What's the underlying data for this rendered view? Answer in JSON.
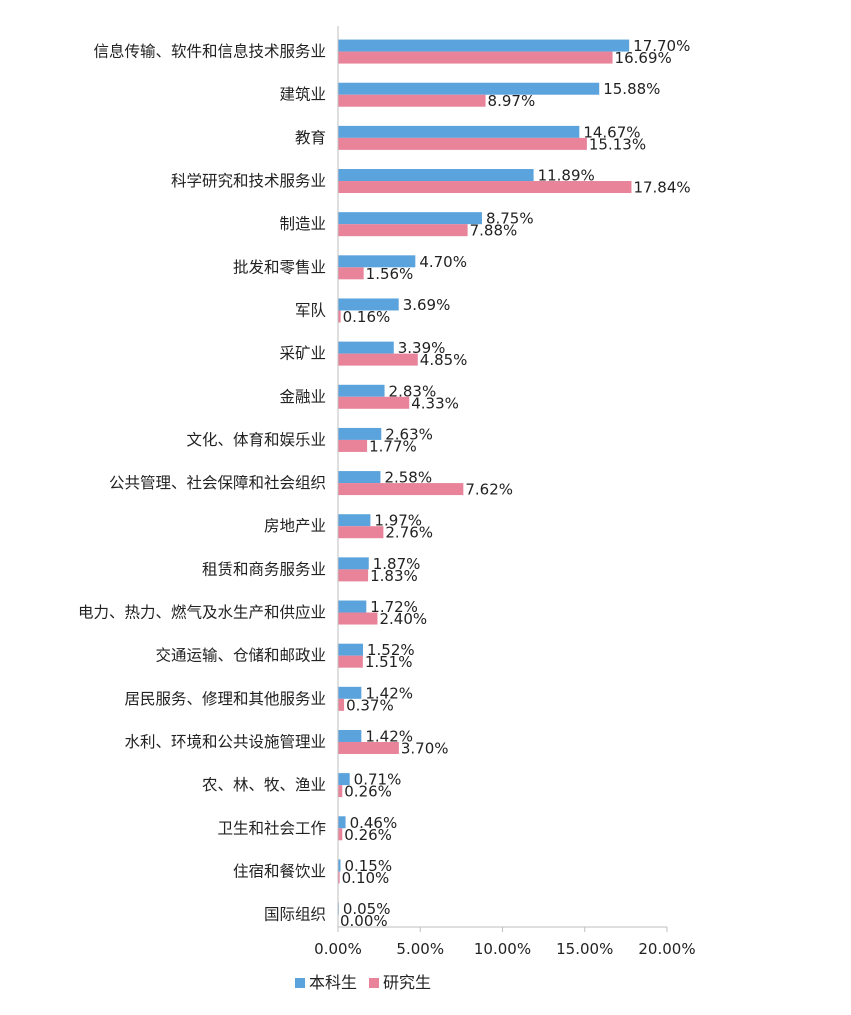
{
  "chart_data": {
    "type": "bar",
    "orientation": "horizontal",
    "categories": [
      "信息传输、软件和信息技术服务业",
      "建筑业",
      "教育",
      "科学研究和技术服务业",
      "制造业",
      "批发和零售业",
      "军队",
      "采矿业",
      "金融业",
      "文化、体育和娱乐业",
      "公共管理、社会保障和社会组织",
      "房地产业",
      "租赁和商务服务业",
      "电力、热力、燃气及水生产和供应业",
      "交通运输、仓储和邮政业",
      "居民服务、修理和其他服务业",
      "水利、环境和公共设施管理业",
      "农、林、牧、渔业",
      "卫生和社会工作",
      "住宿和餐饮业",
      "国际组织"
    ],
    "series": [
      {
        "name": "本科生",
        "color": "#5ba3dc",
        "values": [
          17.7,
          15.88,
          14.67,
          11.89,
          8.75,
          4.7,
          3.69,
          3.39,
          2.83,
          2.63,
          2.58,
          1.97,
          1.87,
          1.72,
          1.52,
          1.42,
          1.42,
          0.71,
          0.46,
          0.15,
          0.05
        ],
        "labels": [
          "17.70%",
          "15.88%",
          "14.67%",
          "11.89%",
          "8.75%",
          "4.70%",
          "3.69%",
          "3.39%",
          "2.83%",
          "2.63%",
          "2.58%",
          "1.97%",
          "1.87%",
          "1.72%",
          "1.52%",
          "1.42%",
          "1.42%",
          "0.71%",
          "0.46%",
          "0.15%",
          "0.05%"
        ]
      },
      {
        "name": "研究生",
        "color": "#e8839a",
        "values": [
          16.69,
          8.97,
          15.13,
          17.84,
          7.88,
          1.56,
          0.16,
          4.85,
          4.33,
          1.77,
          7.62,
          2.76,
          1.83,
          2.4,
          1.51,
          0.37,
          3.7,
          0.26,
          0.26,
          0.1,
          0.0
        ],
        "labels": [
          "16.69%",
          "8.97%",
          "15.13%",
          "17.84%",
          "7.88%",
          "1.56%",
          "0.16%",
          "4.85%",
          "4.33%",
          "1.77%",
          "7.62%",
          "2.76%",
          "1.83%",
          "2.40%",
          "1.51%",
          "0.37%",
          "3.70%",
          "0.26%",
          "0.26%",
          "0.10%",
          "0.00%"
        ]
      }
    ],
    "xlim": [
      0,
      20
    ],
    "xticks": [
      0,
      5,
      10,
      15,
      20
    ],
    "xtick_labels": [
      "0.00%",
      "5.00%",
      "10.00%",
      "15.00%",
      "20.00%"
    ],
    "legend_position": "bottom-left",
    "grid": false
  }
}
